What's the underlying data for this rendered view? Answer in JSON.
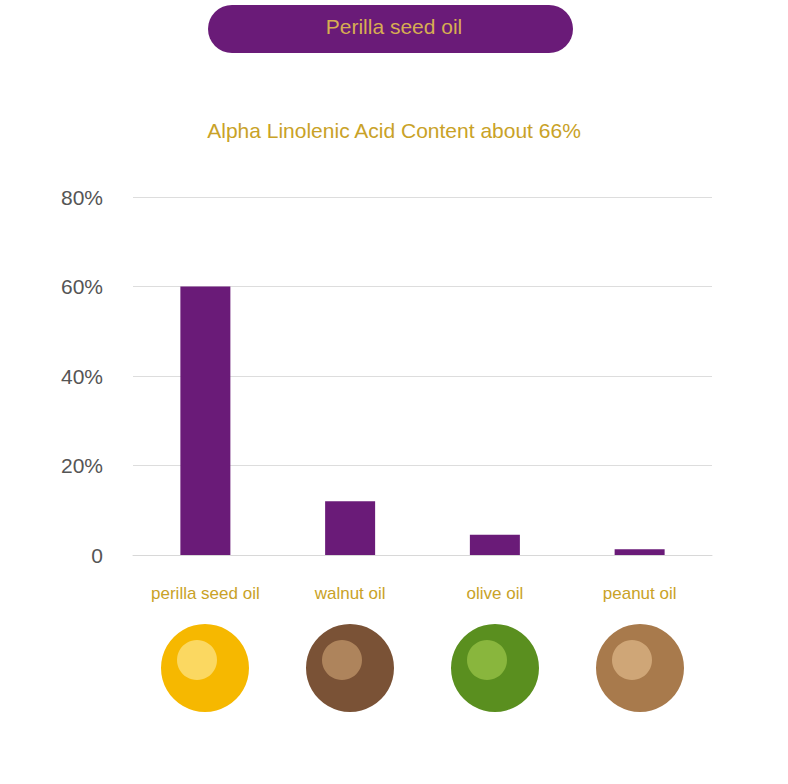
{
  "chart_data": {
    "type": "bar",
    "title": "Perilla seed oil",
    "subtitle": "Alpha Linolenic Acid Content about 66%",
    "categories": [
      "perilla seed oil",
      "walnut oil",
      "olive oil",
      "peanut oil"
    ],
    "values": [
      60,
      12,
      4.5,
      1.3
    ],
    "color": "#6a1b78",
    "ylim": [
      0,
      80
    ],
    "yticks": [
      0,
      {
        "value": 20,
        "label": "20%"
      },
      {
        "value": 40,
        "label": "40%"
      },
      {
        "value": 60,
        "label": "60%"
      },
      {
        "value": 80,
        "label": "80%"
      }
    ],
    "grid": true,
    "data_labels": false
  }
}
